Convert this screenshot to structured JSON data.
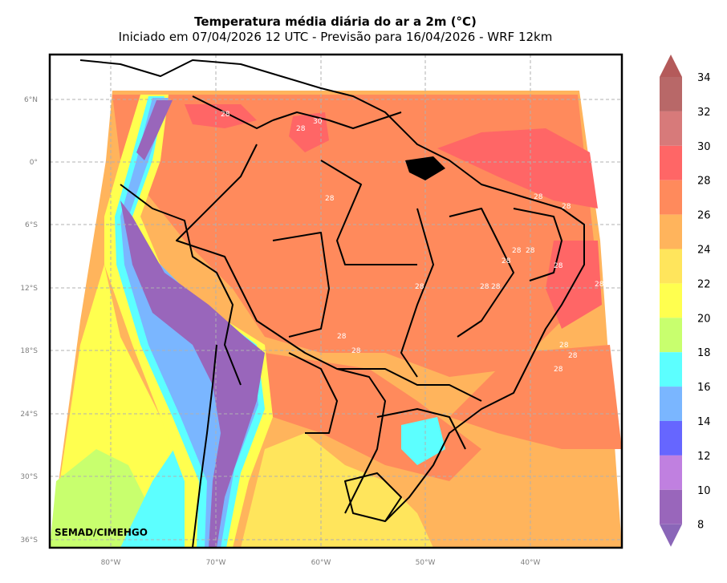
{
  "title": "Temperatura média diária do ar a 2m (°C)",
  "subtitle": "Iniciado em 07/04/2026 12 UTC - Previsão para 16/04/2026 - WRF 12km",
  "credit": "SEMAD/CIMEHGO",
  "lat_labels": [
    "6°N",
    "0°",
    "6°S",
    "12°S",
    "18°S",
    "24°S",
    "30°S",
    "36°S"
  ],
  "lon_labels": [
    "80°W",
    "70°W",
    "60°W",
    "50°W",
    "40°W"
  ],
  "colorbar": {
    "levels": [
      "34",
      "32",
      "30",
      "28",
      "26",
      "24",
      "22",
      "20",
      "18",
      "16",
      "14",
      "12",
      "10",
      "8"
    ],
    "colors_top_to_bottom": [
      "#b45a5a",
      "#b86868",
      "#d77a7a",
      "#ff6666",
      "#ff8a5c",
      "#ffb45c",
      "#ffe55c",
      "#ffff4f",
      "#c8ff6e",
      "#5cffff",
      "#7ab6ff",
      "#6666ff",
      "#c080e0",
      "#9966bb",
      "#8a66b8"
    ]
  },
  "contour_labels": [
    "28",
    "30",
    "28",
    "28",
    "28",
    "28",
    "28",
    "28",
    "28",
    "28",
    "28",
    "28",
    "28",
    "28",
    "28",
    "28",
    "28",
    "28",
    "28"
  ],
  "colors": {
    "hot": "#ff6666",
    "warm": "#ff8a5c",
    "mild": "#ffb45c",
    "yellow": "#ffe55c",
    "lightyellow": "#ffff4f",
    "lime": "#c8ff6e",
    "cyan": "#5cffff",
    "blue": "#7ab6ff",
    "purple": "#9966bb"
  }
}
